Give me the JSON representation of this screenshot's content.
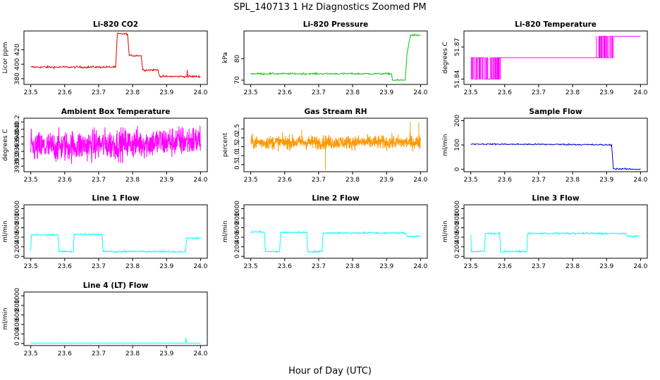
{
  "figure": {
    "title": "SPL_140713 1 Hz Diagnostics Zoomed PM",
    "xlabel": "Hour of Day (UTC)"
  },
  "chart_data": [
    {
      "type": "line",
      "title": "Li-820 CO2",
      "ylabel": "Licor ppm",
      "color": "#e00000",
      "xlim": [
        23.48,
        24.02
      ],
      "ylim": [
        372,
        446
      ],
      "xticks": [
        23.5,
        23.6,
        23.7,
        23.8,
        23.9,
        24.0
      ],
      "xtick_labels": [
        "23.5",
        "23.6",
        "23.7",
        "23.8",
        "23.9",
        "24.0"
      ],
      "yticks": [
        380,
        400,
        420
      ],
      "ytick_labels": [
        "380",
        "400",
        "420"
      ],
      "x": [
        23.5,
        23.75,
        23.755,
        23.785,
        23.79,
        23.825,
        23.83,
        23.875,
        23.88,
        23.96,
        23.961,
        23.962,
        24.0
      ],
      "y": [
        396,
        396,
        442,
        442,
        412,
        412,
        392,
        392,
        383,
        383,
        392,
        383,
        383
      ],
      "noise": 0.7
    },
    {
      "type": "line",
      "title": "Li-820 Pressure",
      "ylabel": "kPa",
      "color": "#00cc00",
      "xlim": [
        23.48,
        24.02
      ],
      "ylim": [
        68,
        93
      ],
      "xticks": [
        23.5,
        23.6,
        23.7,
        23.8,
        23.9,
        24.0
      ],
      "xtick_labels": [
        "23.5",
        "23.6",
        "23.7",
        "23.8",
        "23.9",
        "24.0"
      ],
      "yticks": [
        70,
        80
      ],
      "ytick_labels": [
        "70",
        "80"
      ],
      "x": [
        23.5,
        23.915,
        23.917,
        23.955,
        23.96,
        23.97,
        24.0
      ],
      "y": [
        73,
        73,
        70,
        70,
        82,
        91,
        91
      ],
      "noise": 0.2
    },
    {
      "type": "digital",
      "title": "Li-820 Temperature",
      "ylabel": "degrees C",
      "color": "#ff00ff",
      "xlim": [
        23.48,
        24.02
      ],
      "ylim": [
        51.835,
        51.885
      ],
      "xticks": [
        23.5,
        23.6,
        23.7,
        23.8,
        23.9,
        24.0
      ],
      "xtick_labels": [
        "23.5",
        "23.6",
        "23.7",
        "23.8",
        "23.9",
        "24.0"
      ],
      "yticks": [
        51.84,
        51.87
      ],
      "ytick_labels": [
        "51.84",
        "51.87"
      ],
      "levels": [
        51.84,
        51.86,
        51.88
      ],
      "segments": [
        {
          "x0": 23.5,
          "x1": 23.59,
          "lo": 51.84,
          "hi": 51.86,
          "dense": true
        },
        {
          "x0": 23.59,
          "x1": 23.87,
          "lo": 51.86,
          "hi": 51.86,
          "dense": false
        },
        {
          "x0": 23.87,
          "x1": 23.92,
          "lo": 51.86,
          "hi": 51.88,
          "dense": true
        },
        {
          "x0": 23.92,
          "x1": 24.0,
          "lo": 51.88,
          "hi": 51.88,
          "dense": false
        }
      ]
    },
    {
      "type": "noise",
      "title": "Ambient Box Temperature",
      "ylabel": "degrees C",
      "color": "#ff00ff",
      "xlim": [
        23.48,
        24.02
      ],
      "ylim": [
        38.85,
        40.3
      ],
      "xticks": [
        23.5,
        23.6,
        23.7,
        23.8,
        23.9,
        24.0
      ],
      "xtick_labels": [
        "23.5",
        "23.6",
        "23.7",
        "23.8",
        "23.9",
        "24.0"
      ],
      "yticks": [
        39.0,
        39.2,
        39.4,
        39.6,
        39.8,
        40.0,
        40.2
      ],
      "ytick_labels": [
        "39.0",
        "39.2",
        "39.4",
        "39.6",
        "39.8",
        "40.0",
        "40.2"
      ],
      "x_range": [
        23.5,
        24.0
      ],
      "mean_start": 39.5,
      "mean_end": 39.7,
      "spread": 0.38,
      "count": 700
    },
    {
      "type": "noise",
      "title": "Gas Stream RH",
      "ylabel": "percent",
      "color": "#ff9900",
      "xlim": [
        23.48,
        24.02
      ],
      "ylim": [
        0.1,
        3.1
      ],
      "xticks": [
        23.5,
        23.6,
        23.7,
        23.8,
        23.9,
        24.0
      ],
      "xtick_labels": [
        "23.5",
        "23.6",
        "23.7",
        "23.8",
        "23.9",
        "24.0"
      ],
      "yticks": [
        0.5,
        1.0,
        1.5,
        2.0,
        2.5
      ],
      "ytick_labels": [
        "0.5",
        "1.0",
        "1.5",
        "2.0",
        "2.5"
      ],
      "x_range": [
        23.5,
        24.0
      ],
      "mean_start": 1.75,
      "mean_end": 1.75,
      "spread": 0.35,
      "count": 800,
      "spikes": [
        {
          "x": 23.72,
          "y": 0.2
        },
        {
          "x": 23.97,
          "y": 2.9
        },
        {
          "x": 23.995,
          "y": 2.85
        },
        {
          "x": 23.65,
          "y": 2.45
        }
      ]
    },
    {
      "type": "line",
      "title": "Sample Flow",
      "ylabel": "ml/min",
      "color": "#0000cc",
      "xlim": [
        23.48,
        24.02
      ],
      "ylim": [
        -10,
        210
      ],
      "xticks": [
        23.5,
        23.6,
        23.7,
        23.8,
        23.9,
        24.0
      ],
      "xtick_labels": [
        "23.5",
        "23.6",
        "23.7",
        "23.8",
        "23.9",
        "24.0"
      ],
      "yticks": [
        0,
        100,
        200
      ],
      "ytick_labels": [
        "0",
        "100",
        "200"
      ],
      "x": [
        23.5,
        23.6,
        23.8,
        23.915,
        23.92,
        24.0
      ],
      "y": [
        104,
        103,
        102,
        100,
        2,
        0
      ],
      "noise": 1.5
    },
    {
      "type": "line",
      "title": "Line 1 Flow",
      "ylabel": "ml/min",
      "color": "#00ffff",
      "xlim": [
        23.48,
        24.02
      ],
      "ylim": [
        -40,
        1080
      ],
      "xticks": [
        23.5,
        23.6,
        23.7,
        23.8,
        23.9,
        24.0
      ],
      "xtick_labels": [
        "23.5",
        "23.6",
        "23.7",
        "23.8",
        "23.9",
        "24.0"
      ],
      "yticks": [
        0,
        200,
        400,
        600,
        800,
        1000
      ],
      "ytick_labels": [
        "0",
        "200",
        "400",
        "600",
        "800",
        "1000"
      ],
      "x": [
        23.5,
        23.502,
        23.58,
        23.583,
        23.625,
        23.628,
        23.71,
        23.713,
        23.955,
        23.96,
        24.0
      ],
      "y": [
        120,
        450,
        450,
        100,
        100,
        460,
        460,
        100,
        100,
        380,
        380
      ],
      "noise": 10
    },
    {
      "type": "line",
      "title": "Line 2 Flow",
      "ylabel": "ml/min",
      "color": "#00ffff",
      "xlim": [
        23.48,
        24.02
      ],
      "ylim": [
        -40,
        1080
      ],
      "xticks": [
        23.5,
        23.6,
        23.7,
        23.8,
        23.9,
        24.0
      ],
      "xtick_labels": [
        "23.5",
        "23.6",
        "23.7",
        "23.8",
        "23.9",
        "24.0"
      ],
      "yticks": [
        0,
        200,
        400,
        600,
        800,
        1000
      ],
      "ytick_labels": [
        "0",
        "200",
        "400",
        "600",
        "800",
        "1000"
      ],
      "x": [
        23.5,
        23.54,
        23.543,
        23.585,
        23.588,
        23.665,
        23.668,
        23.71,
        23.713,
        23.955,
        23.96,
        24.0
      ],
      "y": [
        510,
        510,
        100,
        100,
        500,
        500,
        100,
        100,
        490,
        490,
        420,
        420
      ],
      "noise": 10
    },
    {
      "type": "line",
      "title": "Line 3 Flow",
      "ylabel": "ml/min",
      "color": "#00ffff",
      "xlim": [
        23.48,
        24.02
      ],
      "ylim": [
        -40,
        1080
      ],
      "xticks": [
        23.5,
        23.6,
        23.7,
        23.8,
        23.9,
        24.0
      ],
      "xtick_labels": [
        "23.5",
        "23.6",
        "23.7",
        "23.8",
        "23.9",
        "24.0"
      ],
      "yticks": [
        0,
        200,
        400,
        600,
        800,
        1000
      ],
      "ytick_labels": [
        "0",
        "200",
        "400",
        "600",
        "800",
        "1000"
      ],
      "x": [
        23.5,
        23.502,
        23.54,
        23.543,
        23.585,
        23.588,
        23.625,
        23.628,
        23.665,
        23.668,
        23.955,
        23.96,
        24.0
      ],
      "y": [
        450,
        100,
        100,
        480,
        480,
        100,
        100,
        100,
        100,
        480,
        480,
        420,
        420
      ],
      "noise": 10
    },
    {
      "type": "line",
      "title": "Line 4 (LT) Flow",
      "ylabel": "ml/min",
      "color": "#00ffff",
      "xlim": [
        23.48,
        24.02
      ],
      "ylim": [
        -40,
        1080
      ],
      "xticks": [
        23.5,
        23.6,
        23.7,
        23.8,
        23.9,
        24.0
      ],
      "xtick_labels": [
        "23.5",
        "23.6",
        "23.7",
        "23.8",
        "23.9",
        "24.0"
      ],
      "yticks": [
        0,
        200,
        400,
        600,
        800,
        1000
      ],
      "ytick_labels": [
        "0",
        "200",
        "400",
        "600",
        "800",
        "1000"
      ],
      "x": [
        23.5,
        23.955,
        23.957,
        23.959,
        24.0
      ],
      "y": [
        10,
        10,
        120,
        10,
        10
      ],
      "noise": 2
    }
  ]
}
